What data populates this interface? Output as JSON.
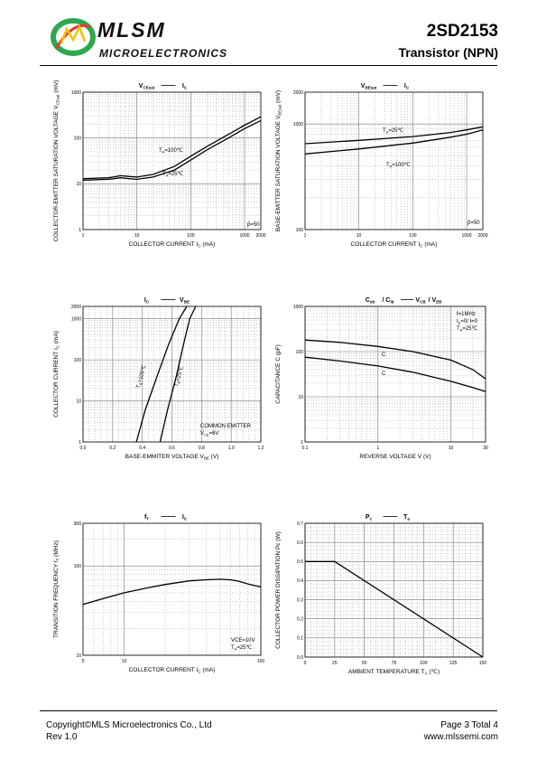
{
  "header": {
    "brand": "MLSM",
    "brand_sub": "MICROELECTRONICS",
    "part_number": "2SD2153",
    "part_type": "Transistor  (NPN)"
  },
  "footer": {
    "copyright": "Copyright©MLS Microelectronics Co., Ltd",
    "revision": "Rev 1.0",
    "page": "Page 3 Total 4",
    "website": "www.mlssemi.com"
  },
  "colors": {
    "logo_green": "#2fa84f",
    "logo_red": "#e03c31",
    "logo_yellow": "#f2c200"
  },
  "chart_data": [
    {
      "id": "vcesat_ic",
      "type": "line",
      "title_left": "V",
      "title_left_sub": "CEsat",
      "title_right": "I",
      "title_right_sub": "C",
      "xlabel": "COLLECTOR CURRENT   I",
      "xlabel_sub": "C",
      "xlabel_unit": "(mA)",
      "ylabel": "COLLECTOR-EMITTER SATURATION VOLTAGE   V",
      "ylabel_sub": "CEsat",
      "ylabel_unit": "(mV)",
      "xscale": "log",
      "yscale": "log",
      "xlim": [
        1,
        2000
      ],
      "ylim": [
        1,
        1000
      ],
      "xticks": [
        "1",
        "10",
        "100",
        "1000",
        "2000"
      ],
      "yticks": [
        "1",
        "10",
        "100",
        "1000"
      ],
      "annotations": [
        "T=100℃",
        "T=25℃",
        "β=50"
      ],
      "series": [
        {
          "label": "Ta=100℃",
          "x": [
            1,
            3,
            5,
            7,
            10,
            20,
            50,
            100,
            200,
            500,
            1000,
            2000
          ],
          "y": [
            13,
            13.5,
            15,
            14.5,
            14,
            16,
            24,
            40,
            65,
            120,
            190,
            290
          ]
        },
        {
          "label": "Ta=25℃",
          "x": [
            1,
            3,
            5,
            7,
            10,
            20,
            50,
            100,
            200,
            500,
            1000,
            2000
          ],
          "y": [
            12,
            12.5,
            13.5,
            13,
            12.5,
            14,
            20,
            33,
            55,
            100,
            160,
            240
          ]
        }
      ]
    },
    {
      "id": "vbesat_ic",
      "type": "line",
      "title_left": "V",
      "title_left_sub": "BEsat",
      "title_right": "I",
      "title_right_sub": "C",
      "xlabel": "COLLECTOR CURRENT   I",
      "xlabel_sub": "C",
      "xlabel_unit": "(mA)",
      "ylabel": "BASE-EMITTER SATURATION VOLTAGE   V",
      "ylabel_sub": "BEsat",
      "ylabel_unit": "(mV)",
      "xscale": "log",
      "yscale": "log",
      "xlim": [
        1,
        2000
      ],
      "ylim": [
        100,
        2000
      ],
      "xticks": [
        "1",
        "10",
        "100",
        "1000",
        "2000"
      ],
      "yticks": [
        "100",
        "1000",
        "2000"
      ],
      "annotations": [
        "T=25℃",
        "T=100℃",
        "β=50"
      ],
      "series": [
        {
          "label": "Ta=25℃",
          "x": [
            1,
            10,
            100,
            500,
            1000,
            2000
          ],
          "y": [
            650,
            700,
            760,
            830,
            880,
            940
          ]
        },
        {
          "label": "Ta=100℃",
          "x": [
            1,
            10,
            100,
            500,
            1000,
            2000
          ],
          "y": [
            520,
            580,
            660,
            750,
            800,
            880
          ]
        }
      ]
    },
    {
      "id": "ic_vbe",
      "type": "line",
      "title_left": "I",
      "title_left_sub": "C",
      "title_right": "V",
      "title_right_sub": "BE",
      "xlabel": "BASE-EMMITER VOLTAGE  V",
      "xlabel_sub": "BE",
      "xlabel_unit": "(V)",
      "ylabel": "COLLECTOR CURRENT   I",
      "ylabel_sub": "C",
      "ylabel_unit": "(mA)",
      "xscale": "linear",
      "yscale": "log",
      "xlim": [
        0,
        1.2
      ],
      "ylim": [
        1,
        2000
      ],
      "xticks": [
        "0.0",
        "0.2",
        "0.4",
        "0.6",
        "0.8",
        "1.0",
        "1.2"
      ],
      "yticks": [
        "1",
        "10",
        "100",
        "1000",
        "2000"
      ],
      "annotations": [
        "T=100℃",
        "T=25℃",
        "COMMON EMITTER",
        "V=6V"
      ],
      "series": [
        {
          "label": "Ta=100℃",
          "x": [
            0.36,
            0.42,
            0.5,
            0.58,
            0.65,
            0.7
          ],
          "y": [
            1,
            6,
            40,
            250,
            1000,
            2000
          ]
        },
        {
          "label": "Ta=25℃",
          "x": [
            0.52,
            0.57,
            0.63,
            0.68,
            0.72,
            0.76
          ],
          "y": [
            1,
            6,
            40,
            250,
            1000,
            2000
          ]
        }
      ]
    },
    {
      "id": "cap_v",
      "type": "line",
      "title_left": "C",
      "title_left_sub": "ob",
      "title_mid": "/ C",
      "title_mid_sub": "ib",
      "title_right": "V",
      "title_right_sub": "CB",
      "title_right2": "/ V",
      "title_right2_sub": "EB",
      "xlabel": "REVERSE VOLTAGE   V",
      "xlabel_unit": "(V)",
      "ylabel": "CAPACITANCE   C",
      "ylabel_unit": "(pF)",
      "xscale": "log",
      "yscale": "log",
      "xlim": [
        0.1,
        30
      ],
      "ylim": [
        1,
        1000
      ],
      "xticks": [
        "0.1",
        "1",
        "10",
        "30"
      ],
      "yticks": [
        "1",
        "10",
        "100",
        "1000"
      ],
      "annotations": [
        "f=1MHz",
        "I=0/ I=0",
        "T=25℃",
        "C",
        "C"
      ],
      "series": [
        {
          "label": "Cib",
          "x": [
            0.1,
            0.3,
            1,
            3,
            10,
            20,
            30
          ],
          "y": [
            180,
            160,
            130,
            100,
            65,
            40,
            25
          ]
        },
        {
          "label": "Cob",
          "x": [
            0.1,
            0.3,
            1,
            3,
            10,
            20,
            30
          ],
          "y": [
            75,
            62,
            48,
            35,
            22,
            16,
            13
          ]
        }
      ]
    },
    {
      "id": "ft_ic",
      "type": "line",
      "title_left": "f",
      "title_left_sub": "T",
      "title_right": "I",
      "title_right_sub": "C",
      "xlabel": "COLLECTOR CURRENT I",
      "xlabel_sub": "C",
      "xlabel_unit": "(mA)",
      "ylabel": "TRANSITION FREQUENCY   f",
      "ylabel_sub": "T",
      "ylabel_unit": "(MHz)",
      "xscale": "log",
      "yscale": "log",
      "xlim": [
        5,
        100
      ],
      "ylim": [
        10,
        300
      ],
      "xticks": [
        "5",
        "10",
        "100"
      ],
      "yticks": [
        "10",
        "100",
        "300"
      ],
      "annotations": [
        "VCE=10V",
        "T=25℃"
      ],
      "series": [
        {
          "label": "fT",
          "x": [
            5,
            7,
            10,
            15,
            20,
            30,
            40,
            50,
            60,
            70,
            80,
            100
          ],
          "y": [
            37,
            43,
            50,
            57,
            62,
            68,
            70,
            71,
            70,
            67,
            63,
            58
          ]
        }
      ]
    },
    {
      "id": "pc_ta",
      "type": "line",
      "title_left": "P",
      "title_left_sub": "c",
      "title_right": "T",
      "title_right_sub": "a",
      "xlabel": "AMBIENT TEMPERATURE T",
      "xlabel_sub": "A",
      "xlabel_unit": "(℃)",
      "ylabel": "COLLECTOR POWER DISSIPATION   Pc  (W)",
      "xscale": "linear",
      "yscale": "linear",
      "xlim": [
        0,
        150
      ],
      "ylim": [
        0,
        0.7
      ],
      "xticks": [
        "0",
        "25",
        "50",
        "75",
        "100",
        "125",
        "150"
      ],
      "yticks": [
        "0.0",
        "0.1",
        "0.2",
        "0.3",
        "0.4",
        "0.5",
        "0.6",
        "0.7"
      ],
      "series": [
        {
          "label": "Pc",
          "x": [
            0,
            25,
            150
          ],
          "y": [
            0.5,
            0.5,
            0.0
          ]
        }
      ]
    }
  ]
}
